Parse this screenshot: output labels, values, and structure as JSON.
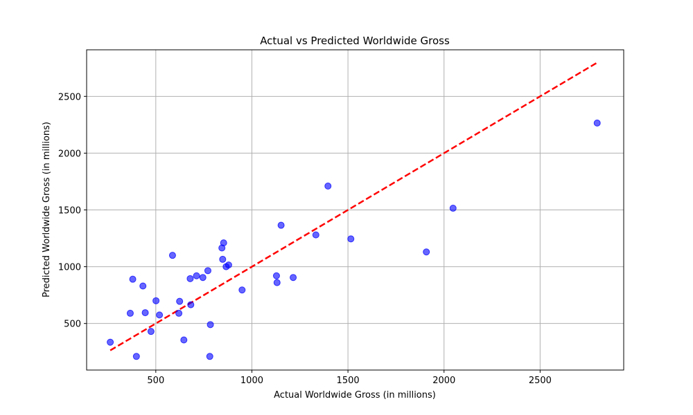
{
  "chart_data": {
    "type": "scatter",
    "title": "Actual vs Predicted Worldwide Gross",
    "xlabel": "Actual Worldwide Gross (in millions)",
    "ylabel": "Predicted Worldwide Gross (in millions)",
    "xlim": [
      140,
      2935
    ],
    "ylim": [
      90,
      2910
    ],
    "xticks": [
      500,
      1000,
      1500,
      2000,
      2500
    ],
    "yticks": [
      500,
      1000,
      1500,
      2000,
      2500
    ],
    "grid": true,
    "point_color": "#0000ff",
    "line_color": "#ff0000",
    "series": [
      {
        "marker": "circle",
        "points": [
          [
            263,
            335
          ],
          [
            367,
            590
          ],
          [
            380,
            890
          ],
          [
            399,
            210
          ],
          [
            433,
            830
          ],
          [
            445,
            595
          ],
          [
            475,
            430
          ],
          [
            501,
            700
          ],
          [
            519,
            575
          ],
          [
            587,
            1100
          ],
          [
            620,
            590
          ],
          [
            624,
            695
          ],
          [
            646,
            355
          ],
          [
            679,
            895
          ],
          [
            682,
            665
          ],
          [
            712,
            920
          ],
          [
            745,
            905
          ],
          [
            771,
            965
          ],
          [
            784,
            490
          ],
          [
            781,
            210
          ],
          [
            844,
            1165
          ],
          [
            848,
            1065
          ],
          [
            853,
            1210
          ],
          [
            866,
            1000
          ],
          [
            879,
            1015
          ],
          [
            949,
            795
          ],
          [
            1128,
            920
          ],
          [
            1131,
            860
          ],
          [
            1152,
            1365
          ],
          [
            1215,
            905
          ],
          [
            1333,
            1280
          ],
          [
            1396,
            1710
          ],
          [
            1515,
            1245
          ],
          [
            1908,
            1130
          ],
          [
            2047,
            1515
          ],
          [
            2797,
            2265
          ]
        ]
      }
    ],
    "reference_line": {
      "style": "dashed",
      "from": [
        263,
        263
      ],
      "to": [
        2797,
        2797
      ]
    }
  }
}
